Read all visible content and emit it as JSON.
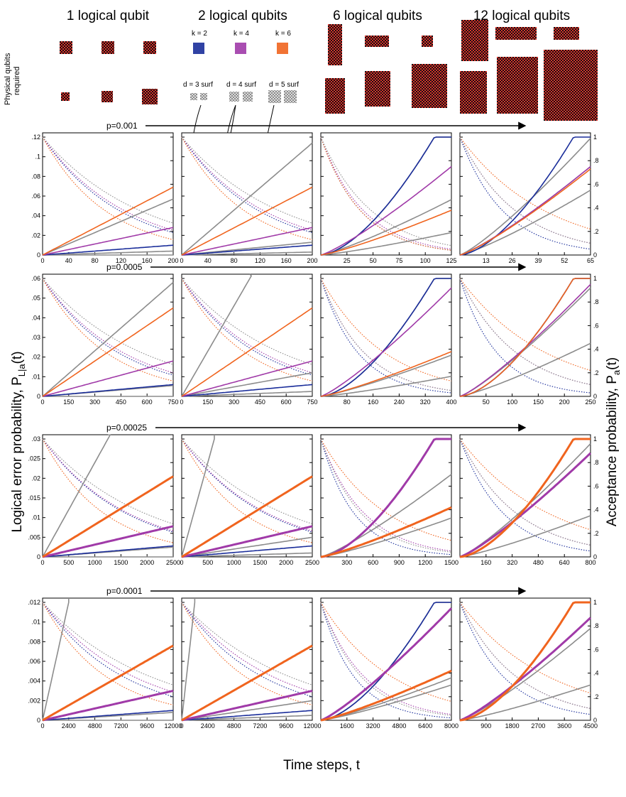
{
  "header": {
    "columns": [
      "1 logical qubit",
      "2 logical qubits",
      "6 logical qubits",
      "12 logical qubits"
    ],
    "side_label_lines": [
      "Physical qubits",
      "required"
    ],
    "legend_codes": [
      {
        "label": "k = 2",
        "color": "#1a2d9a"
      },
      {
        "label": "k = 4",
        "color": "#a03aa8"
      },
      {
        "label": "k = 6",
        "color": "#f0641e"
      }
    ],
    "legend_surface": [
      "d = 3 surf",
      "d = 4 surf",
      "d = 5 surf"
    ]
  },
  "axes": {
    "ylabel_left": "Logical error probability, P",
    "ylabel_left_sub": "L|a",
    "ylabel_left_tail": "(t)",
    "ylabel_right": "Acceptance probability, P",
    "ylabel_right_sub": "a",
    "ylabel_right_tail": "(t)",
    "xlabel": "Time steps, t"
  },
  "colors": {
    "k2": "#1a2d9a",
    "k4": "#a03aa8",
    "k6": "#f0641e",
    "surf": "#8c8c8c",
    "checker": "#d9302a"
  },
  "chart_data": [
    {
      "type": "line",
      "title": "p=0.001",
      "ylim": [
        0,
        0.12
      ],
      "y_ticks": [
        "0",
        ".02",
        ".04",
        ".06",
        ".08",
        ".1",
        ".12"
      ],
      "right_ticks": [
        "0",
        ".2",
        ".4",
        ".6",
        ".8",
        "1"
      ],
      "panels": [
        {
          "xmax": 200,
          "x_ticks": [
            "0",
            "40",
            "80",
            "120",
            "160",
            "200"
          ],
          "error_end": {
            "k2": 0.01,
            "k4": 0.028,
            "k6": 0.069,
            "d3": 0.057,
            "d4": 0.004,
            "d5": 0.0
          },
          "accept_end": {
            "k2": 0.19,
            "k4": 0.21,
            "k6": 0.13,
            "surf": 0.27
          }
        },
        {
          "xmax": 200,
          "x_ticks": [
            "0",
            "40",
            "80",
            "120",
            "160",
            "200"
          ],
          "error_end": {
            "k2": 0.01,
            "k4": 0.028,
            "k6": 0.069,
            "d3": 0.114,
            "d4": 0.013,
            "d5": 0.003
          },
          "accept_end": {
            "k2": 0.19,
            "k4": 0.21,
            "k6": 0.13,
            "surf": 0.27
          }
        },
        {
          "xmax": 125,
          "x_ticks": [
            "25",
            "50",
            "75",
            "100",
            "125"
          ],
          "error_end": {
            "k2": 1.0,
            "k4": 0.75,
            "k6": 0.38,
            "d3": 1.0,
            "d4": 0.47,
            "d5": 0.19
          },
          "accept_end": {
            "k2": 0.04,
            "k4": 0.05,
            "k6": 0.04,
            "surf": 0.08
          }
        },
        {
          "xmax": 65,
          "x_ticks": [
            "13",
            "26",
            "39",
            "52",
            "65"
          ],
          "error_end": {
            "k2": 1.0,
            "k4": 0.75,
            "k6": 0.73,
            "d3": 0.99,
            "d4": 0.75,
            "d5": 0.55
          },
          "accept_end": {
            "k2": 0.05,
            "k4": 0.1,
            "k6": 0.22,
            "surf": 0.1
          }
        }
      ]
    },
    {
      "type": "line",
      "title": "p=0.0005",
      "ylim": [
        0,
        0.06
      ],
      "y_ticks": [
        "0",
        ".01",
        ".02",
        ".03",
        ".04",
        ".05",
        ".06"
      ],
      "right_ticks": [
        "0",
        ".2",
        ".4",
        ".6",
        ".8",
        "1"
      ],
      "panels": [
        {
          "xmax": 750,
          "x_ticks": [
            "0",
            "150",
            "300",
            "450",
            "600",
            "750"
          ],
          "error_end": {
            "k2": 0.006,
            "k4": 0.018,
            "k6": 0.045,
            "d3": 0.058,
            "d4": 0.0055,
            "d5": 0.0
          },
          "accept_end": {
            "k2": 0.18,
            "k4": 0.2,
            "k6": 0.13,
            "surf": 0.27
          }
        },
        {
          "xmax": 750,
          "x_ticks": [
            "0",
            "150",
            "300",
            "450",
            "600",
            "750"
          ],
          "error_end": {
            "k2": 0.006,
            "k4": 0.018,
            "k6": 0.045,
            "d3": 0.115,
            "d4": 0.012,
            "d5": 0.0025
          },
          "accept_end": {
            "k2": 0.18,
            "k4": 0.2,
            "k6": 0.13,
            "surf": 0.27
          }
        },
        {
          "xmax": 400,
          "x_ticks": [
            "80",
            "160",
            "240",
            "320",
            "400"
          ],
          "error_end": {
            "k2": 1.0,
            "k4": 0.92,
            "k6": 0.38,
            "d3": 1.0,
            "d4": 0.35,
            "d5": 0.17
          },
          "accept_end": {
            "k2": 0.03,
            "k4": 0.05,
            "k6": 0.13,
            "surf": 0.05
          }
        },
        {
          "xmax": 250,
          "x_ticks": [
            "50",
            "100",
            "150",
            "200",
            "250"
          ],
          "error_end": {
            "k2": 1.0,
            "k4": 0.95,
            "k6": 1.0,
            "d3": 1.0,
            "d4": 0.92,
            "d5": 0.45
          },
          "accept_end": {
            "k2": 0.03,
            "k4": 0.1,
            "k6": 0.22,
            "surf": 0.1
          }
        }
      ]
    },
    {
      "type": "line",
      "title": "p=0.00025",
      "ylim": [
        0,
        0.03
      ],
      "y_ticks": [
        "0",
        ".005",
        ".01",
        ".015",
        ".02",
        ".025",
        ".03"
      ],
      "right_ticks": [
        "0",
        ".2",
        ".4",
        ".6",
        ".8",
        "1"
      ],
      "panels": [
        {
          "xmax": 2500,
          "x_ticks": [
            "0",
            "500",
            "1000",
            "1500",
            "2000",
            "2500"
          ],
          "error_end": {
            "k2": 0.0028,
            "k4": 0.0078,
            "k6": 0.0205,
            "d3": 0.06,
            "d4": 0.0025,
            "d5": 0.0
          },
          "accept_end": {
            "k2": 0.21,
            "k4": 0.22,
            "k6": 0.12,
            "surf": 0.28
          }
        },
        {
          "xmax": 2500,
          "x_ticks": [
            "0",
            "500",
            "1000",
            "1500",
            "2000",
            "2500"
          ],
          "error_end": {
            "k2": 0.0028,
            "k4": 0.0078,
            "k6": 0.0205,
            "d3": 0.12,
            "d4": 0.005,
            "d5": 0.001
          },
          "accept_end": {
            "k2": 0.21,
            "k4": 0.22,
            "k6": 0.12,
            "surf": 0.28
          }
        },
        {
          "xmax": 1500,
          "x_ticks": [
            "300",
            "600",
            "900",
            "1200",
            "1500"
          ],
          "error_end": {
            "k2": 1.0,
            "k4": 1.0,
            "k6": 0.42,
            "d3": 1.0,
            "d4": 0.33,
            "d5": 0.7
          },
          "accept_end": {
            "k2": 0.02,
            "k4": 0.05,
            "k6": 0.14,
            "surf": 0.04
          }
        },
        {
          "xmax": 800,
          "x_ticks": [
            "160",
            "320",
            "480",
            "640",
            "800"
          ],
          "error_end": {
            "k2": 1.0,
            "k4": 0.88,
            "k6": 1.0,
            "d3": 1.0,
            "d4": 0.35,
            "d5": 0.96
          },
          "accept_end": {
            "k2": 0.05,
            "k4": 0.1,
            "k6": 0.23,
            "surf": 0.1
          }
        }
      ]
    },
    {
      "type": "line",
      "title": "p=0.0001",
      "ylim": [
        0,
        0.012
      ],
      "y_ticks": [
        "0",
        ".002",
        ".004",
        ".006",
        ".008",
        ".01",
        ".012"
      ],
      "right_ticks": [
        "0",
        ".2",
        ".4",
        ".6",
        ".8",
        "1"
      ],
      "panels": [
        {
          "xmax": 12000,
          "x_ticks": [
            "0",
            "2400",
            "4800",
            "7200",
            "9600",
            "12000"
          ],
          "error_end": {
            "k2": 0.001,
            "k4": 0.003,
            "k6": 0.0076,
            "d3": 0.06,
            "d4": 0.0008,
            "d5": 0.0
          },
          "accept_end": {
            "k2": 0.2,
            "k4": 0.24,
            "k6": 0.13,
            "surf": 0.3
          }
        },
        {
          "xmax": 12000,
          "x_ticks": [
            "0",
            "2400",
            "4800",
            "7200",
            "9600",
            "12000"
          ],
          "error_end": {
            "k2": 0.001,
            "k4": 0.003,
            "k6": 0.0076,
            "d3": 0.12,
            "d4": 0.002,
            "d5": 0.0005
          },
          "accept_end": {
            "k2": 0.2,
            "k4": 0.24,
            "k6": 0.13,
            "surf": 0.3
          }
        },
        {
          "xmax": 8000,
          "x_ticks": [
            "1600",
            "3200",
            "4800",
            "6400",
            "8000"
          ],
          "error_end": {
            "k2": 1.0,
            "k4": 0.95,
            "k6": 0.42,
            "d3": 1.0,
            "d4": 0.3,
            "d5": 0.36
          },
          "accept_end": {
            "k2": 0.02,
            "k4": 0.05,
            "k6": 0.16,
            "surf": 0.04
          }
        },
        {
          "xmax": 4500,
          "x_ticks": [
            "900",
            "1800",
            "2700",
            "3600",
            "4500"
          ],
          "error_end": {
            "k2": 1.0,
            "k4": 0.87,
            "k6": 1.0,
            "d3": 1.0,
            "d4": 0.3,
            "d5": 0.78
          },
          "accept_end": {
            "k2": 0.05,
            "k4": 0.1,
            "k6": 0.23,
            "surf": 0.1
          }
        }
      ]
    }
  ]
}
